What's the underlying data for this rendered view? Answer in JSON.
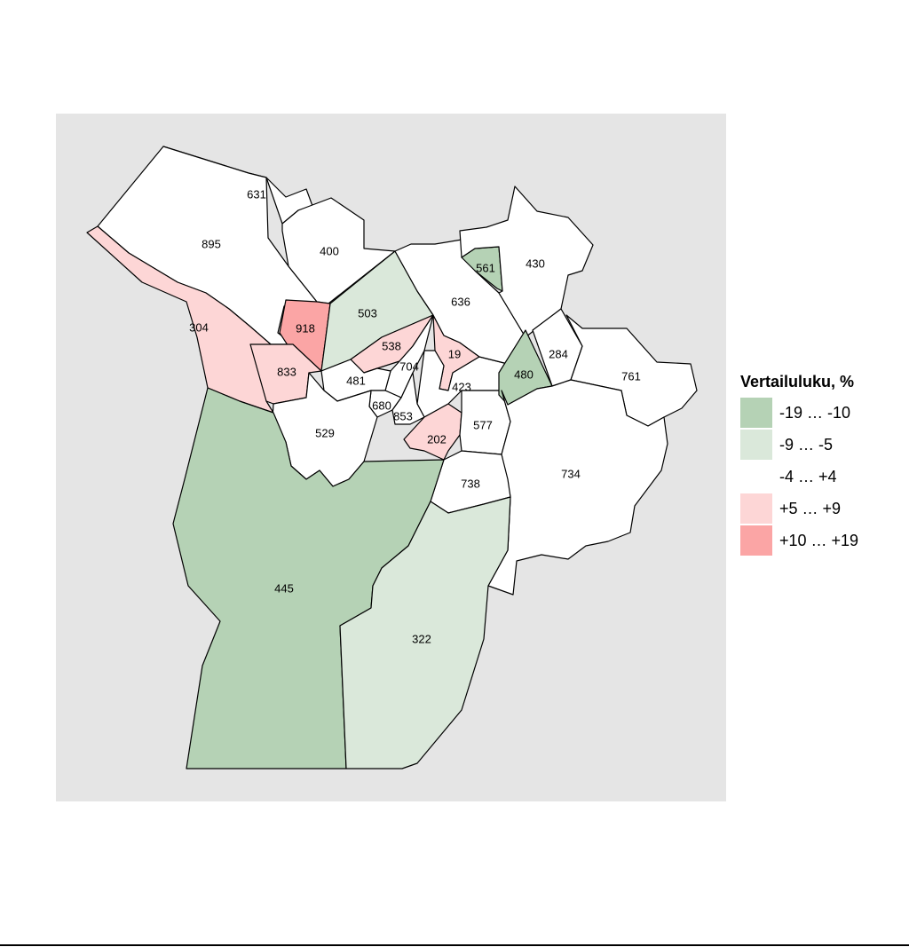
{
  "colors": {
    "panel_bg": "#e5e5e5",
    "class_strong_neg": "#b5d2b5",
    "class_neg": "#dae8da",
    "class_neutral": "#ffffff",
    "class_pos": "#fdd6d6",
    "class_strong_pos": "#fba5a5",
    "border": "#000000"
  },
  "legend": {
    "title": "Vertailuluku, %",
    "items": [
      {
        "label": "-19 … -10",
        "class": "strong_neg"
      },
      {
        "label": "-9 … -5",
        "class": "neg"
      },
      {
        "label": "-4 … +4",
        "class": "neutral"
      },
      {
        "label": "+5 … +9",
        "class": "pos"
      },
      {
        "label": "+10 … +19",
        "class": "strong_pos"
      }
    ]
  },
  "regions": [
    {
      "code": "631",
      "class": "neutral"
    },
    {
      "code": "895",
      "class": "neutral"
    },
    {
      "code": "400",
      "class": "neutral"
    },
    {
      "code": "304",
      "class": "pos"
    },
    {
      "code": "918",
      "class": "strong_pos"
    },
    {
      "code": "503",
      "class": "neg"
    },
    {
      "code": "833",
      "class": "pos"
    },
    {
      "code": "538",
      "class": "pos"
    },
    {
      "code": "704",
      "class": "neutral"
    },
    {
      "code": "19",
      "class": "pos"
    },
    {
      "code": "481",
      "class": "neutral"
    },
    {
      "code": "423",
      "class": "neutral"
    },
    {
      "code": "680",
      "class": "neutral"
    },
    {
      "code": "853",
      "class": "neutral"
    },
    {
      "code": "529",
      "class": "neutral"
    },
    {
      "code": "202",
      "class": "pos"
    },
    {
      "code": "577",
      "class": "neutral"
    },
    {
      "code": "636",
      "class": "neutral"
    },
    {
      "code": "561",
      "class": "strong_neg"
    },
    {
      "code": "430",
      "class": "neutral"
    },
    {
      "code": "480",
      "class": "strong_neg"
    },
    {
      "code": "284",
      "class": "neutral"
    },
    {
      "code": "761",
      "class": "neutral"
    },
    {
      "code": "734",
      "class": "neutral"
    },
    {
      "code": "738",
      "class": "neutral"
    },
    {
      "code": "445",
      "class": "strong_neg"
    },
    {
      "code": "322",
      "class": "neg"
    }
  ]
}
